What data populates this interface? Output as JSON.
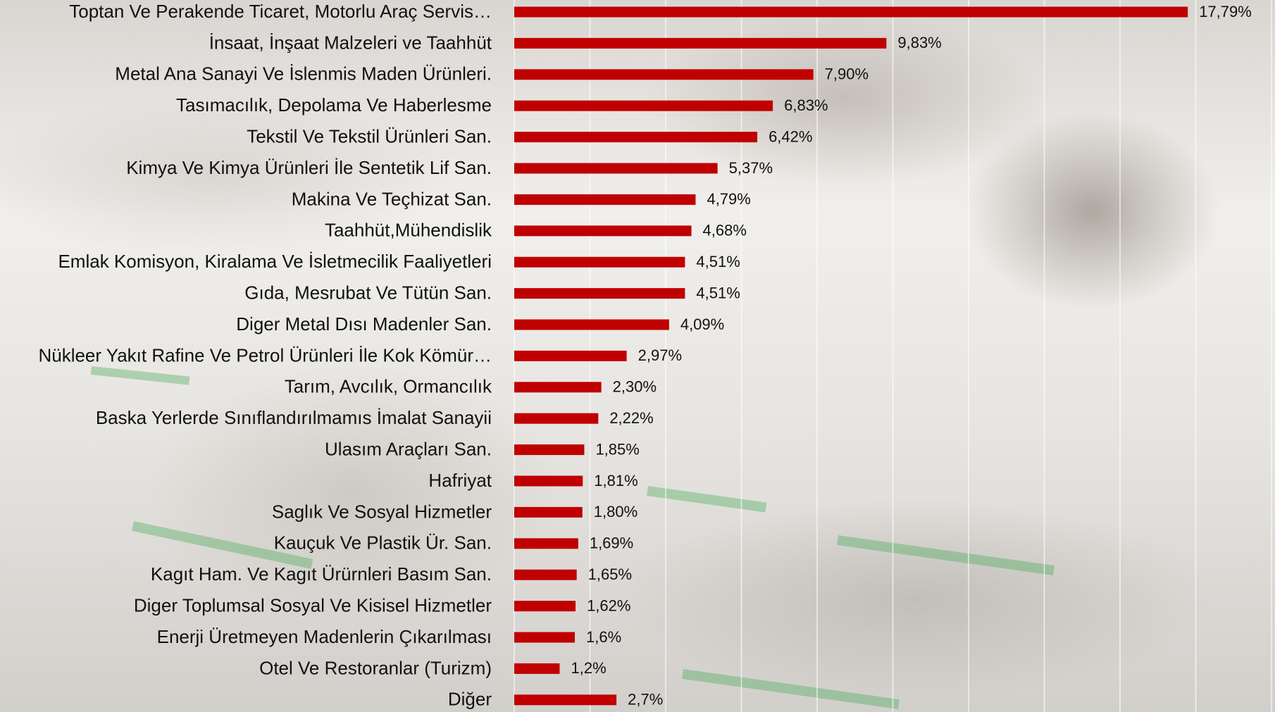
{
  "chart_data": {
    "type": "barh",
    "categories": [
      "Toptan Ve Perakende Ticaret, Motorlu Araç Servis…",
      "İnsaat, İnşaat Malzeleri ve Taahhüt",
      "Metal Ana Sanayi Ve İslenmis Maden Ürünleri.",
      "Tasımacılık, Depolama Ve Haberlesme",
      "Tekstil Ve Tekstil Ürünleri San.",
      "Kimya Ve Kimya Ürünleri İle Sentetik Lif San.",
      "Makina Ve Teçhizat San.",
      "Taahhüt,Mühendislik",
      "Emlak Komisyon, Kiralama Ve İsletmecilik Faaliyetleri",
      "Gıda, Mesrubat Ve Tütün San.",
      "Diger Metal Dısı Madenler San.",
      "Nükleer Yakıt Rafine Ve Petrol Ürünleri İle Kok Kömür…",
      "Tarım, Avcılık, Ormancılık",
      "Baska Yerlerde Sınıflandırılmamıs İmalat Sanayii",
      "Ulasım Araçları San.",
      "Hafriyat",
      "Saglık Ve Sosyal Hizmetler",
      "Kauçuk Ve Plastik Ür. San.",
      "Kagıt Ham. Ve Kagıt Ürürnleri Basım San.",
      "Diger Toplumsal Sosyal Ve Kisisel Hizmetler",
      "Enerji Üretmeyen Madenlerin Çıkarılması",
      "Otel Ve Restoranlar (Turizm)",
      "Diğer"
    ],
    "values": [
      17.79,
      9.83,
      7.9,
      6.83,
      6.42,
      5.37,
      4.79,
      4.68,
      4.51,
      4.51,
      4.09,
      2.97,
      2.3,
      2.22,
      1.85,
      1.81,
      1.8,
      1.69,
      1.65,
      1.62,
      1.6,
      1.2,
      2.7
    ],
    "value_labels": [
      "17,79%",
      "9,83%",
      "7,90%",
      "6,83%",
      "6,42%",
      "5,37%",
      "4,79%",
      "4,68%",
      "4,51%",
      "4,51%",
      "4,09%",
      "2,97%",
      "2,30%",
      "2,22%",
      "1,85%",
      "1,81%",
      "1,80%",
      "1,69%",
      "1,65%",
      "1,62%",
      "1,6%",
      "1,2%",
      "2,7%"
    ],
    "color": "#c00000",
    "xlim": [
      0,
      20
    ],
    "xticks": [
      0,
      2,
      4,
      6,
      8,
      10,
      12,
      14,
      16,
      18,
      20
    ],
    "grid": true
  }
}
